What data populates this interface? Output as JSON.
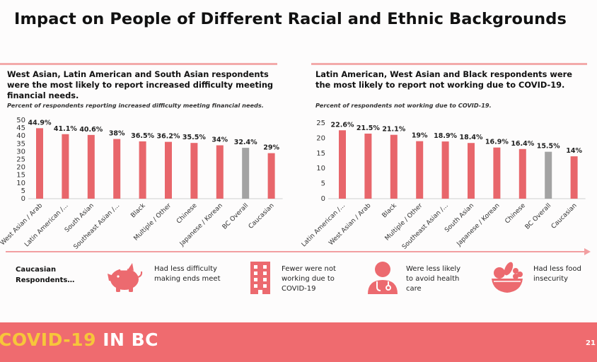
{
  "slide": {
    "title": "Impact on People of Different Racial and Ethnic Backgrounds",
    "page_number": "21"
  },
  "footer": {
    "brand_covid": "COVID-19",
    "brand_inbc": "IN BC"
  },
  "left_panel": {
    "heading": "West Asian, Latin American and South Asian respondents were the most likely to report increased difficulty meeting financial needs.",
    "subtitle": "Percent of respondents reporting increased difficulty meeting financial needs."
  },
  "right_panel": {
    "heading": "Latin American, West Asian and Black respondents were the most likely to report not working due to COVID-19.",
    "subtitle": "Percent of respondents not working due to COVID-19."
  },
  "bottom": {
    "lead": "Caucasian Respondents…",
    "items": [
      {
        "icon": "piggy-bank-icon",
        "text": "Had less difficulty making ends meet"
      },
      {
        "icon": "office-building-icon",
        "text": "Fewer were not working due to COVID-19"
      },
      {
        "icon": "doctor-icon",
        "text": "Were less likely to avoid health care"
      },
      {
        "icon": "food-bowl-icon",
        "text": "Had less food insecurity"
      }
    ]
  },
  "colors": {
    "bar": "#e8666b",
    "overall_bar": "#a3a3a3",
    "accent": "#ef6b6f",
    "brand_yellow": "#f7c63a"
  },
  "chart_data": [
    {
      "type": "bar",
      "title": "Percent of respondents reporting increased difficulty meeting financial needs.",
      "categories": [
        "West Asian / Arab",
        "Latin American /...",
        "South Asian",
        "Southeast Asian /...",
        "Black",
        "Multiple / Other",
        "Chinese",
        "Japanese / Korean",
        "BC Overall",
        "Caucasian"
      ],
      "values": [
        44.9,
        41.1,
        40.6,
        38,
        36.5,
        36.2,
        35.5,
        34,
        32.4,
        29
      ],
      "value_labels": [
        "44.9%",
        "41.1%",
        "40.6%",
        "38%",
        "36.5%",
        "36.2%",
        "35.5%",
        "34%",
        "32.4%",
        "29%"
      ],
      "highlight": "BC Overall",
      "ylim": [
        0,
        50
      ],
      "yticks": [
        0,
        5,
        10,
        15,
        20,
        25,
        30,
        35,
        40,
        45,
        50
      ],
      "grid": false
    },
    {
      "type": "bar",
      "title": "Percent of respondents not working due to COVID-19.",
      "categories": [
        "Latin American /...",
        "West Asian / Arab",
        "Black",
        "Multiple / Other",
        "Southeast Asian /...",
        "South Asian",
        "Japanese / Korean",
        "Chinese",
        "BC Overall",
        "Caucasian"
      ],
      "values": [
        22.6,
        21.5,
        21.1,
        19,
        18.9,
        18.4,
        16.9,
        16.4,
        15.5,
        14
      ],
      "value_labels": [
        "22.6%",
        "21.5%",
        "21.1%",
        "19%",
        "18.9%",
        "18.4%",
        "16.9%",
        "16.4%",
        "15.5%",
        "14%"
      ],
      "highlight": "BC Overall",
      "ylim": [
        0,
        25
      ],
      "yticks": [
        0,
        5,
        10,
        15,
        20,
        25
      ],
      "grid": false
    }
  ]
}
